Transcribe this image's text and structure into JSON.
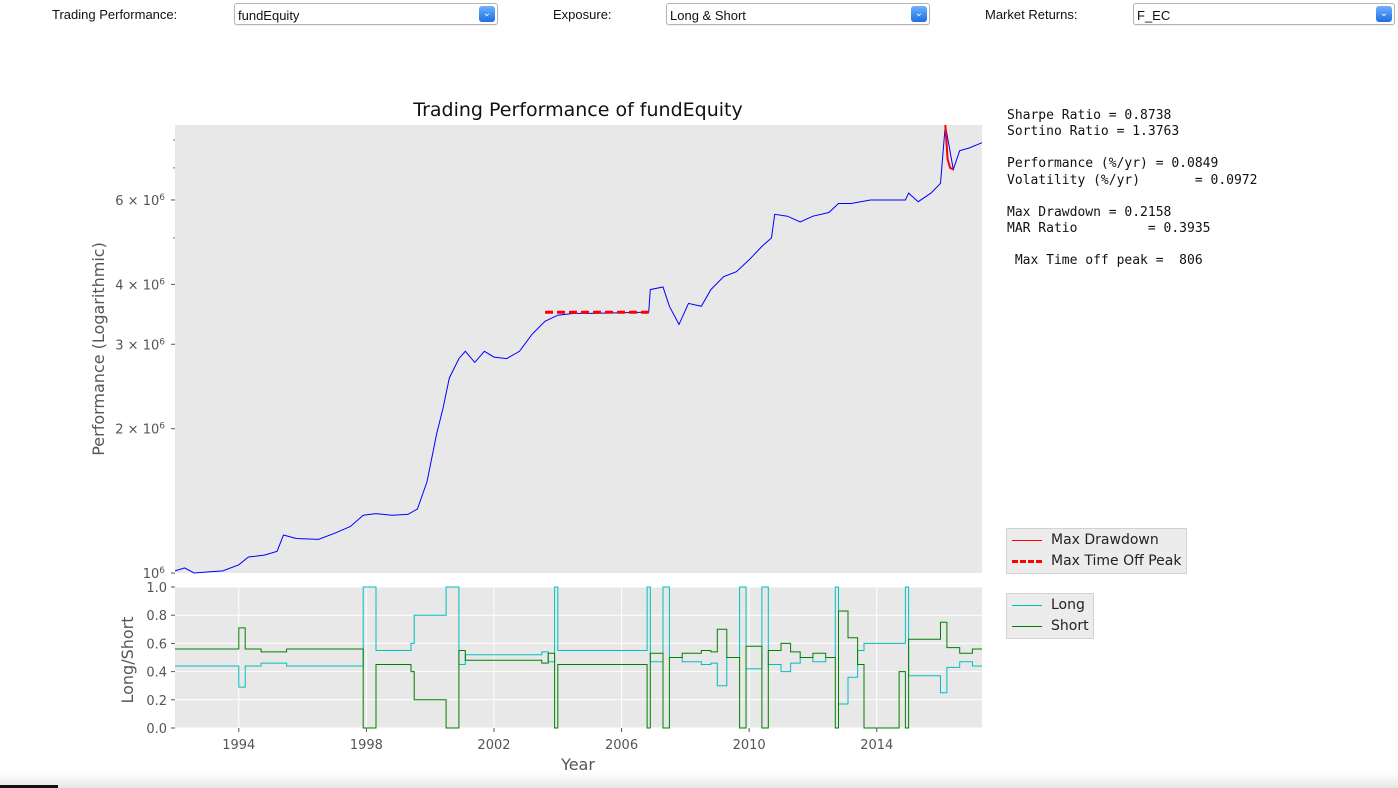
{
  "controls": [
    {
      "label": "Trading Performance:",
      "value": "fundEquity",
      "icon": "chevron-down-icon"
    },
    {
      "label": "Exposure:",
      "value": "Long & Short",
      "icon": "chevron-down-icon"
    },
    {
      "label": "Market Returns:",
      "value": "F_EC",
      "icon": "chevron-down-icon"
    }
  ],
  "stats": {
    "sharpe": "Sharpe Ratio = 0.8738",
    "sortino": "Sortino Ratio = 1.3763",
    "performance": "Performance (%/yr) = 0.0849",
    "volatility": "Volatility (%/yr)       = 0.0972",
    "max_drawdown": "Max Drawdown = 0.2158",
    "mar": "MAR Ratio         = 0.3935",
    "time_off_peak": " Max Time off peak =  806"
  },
  "legends": {
    "top": [
      {
        "label": "Max Drawdown",
        "color": "#ff0000",
        "style": "solid"
      },
      {
        "label": "Max Time Off Peak",
        "color": "#ff0000",
        "style": "dashed"
      }
    ],
    "bottom": [
      {
        "label": "Long",
        "color": "#00bfbf",
        "style": "solid"
      },
      {
        "label": "Short",
        "color": "#008000",
        "style": "solid"
      }
    ]
  },
  "chart_data": [
    {
      "type": "line",
      "title": "Trading Performance of fundEquity",
      "ylabel": "Performance (Logarithmic)",
      "xlabel": "",
      "y_scale": "log",
      "xlim": [
        1992.0,
        2017.3
      ],
      "ylim": [
        1000000,
        8600000
      ],
      "y_ticks": [
        {
          "v": 1000000,
          "label_base": "10",
          "label_exp": "6"
        },
        {
          "v": 2000000,
          "label_base": "2 × 10",
          "label_exp": "6"
        },
        {
          "v": 3000000,
          "label_base": "3 × 10",
          "label_exp": "6"
        },
        {
          "v": 4000000,
          "label_base": "4 × 10",
          "label_exp": "6"
        },
        {
          "v": 6000000,
          "label_base": "6 × 10",
          "label_exp": "6"
        }
      ],
      "grid": true,
      "series": [
        {
          "color": "#0000ff",
          "points": [
            [
              1992.0,
              1010000
            ],
            [
              1992.3,
              1025000
            ],
            [
              1992.6,
              1000000
            ],
            [
              1993.0,
              1005000
            ],
            [
              1993.5,
              1010000
            ],
            [
              1994.0,
              1040000
            ],
            [
              1994.3,
              1080000
            ],
            [
              1994.8,
              1090000
            ],
            [
              1995.2,
              1110000
            ],
            [
              1995.4,
              1200000
            ],
            [
              1995.8,
              1180000
            ],
            [
              1996.5,
              1175000
            ],
            [
              1997.0,
              1210000
            ],
            [
              1997.5,
              1250000
            ],
            [
              1997.9,
              1320000
            ],
            [
              1998.3,
              1330000
            ],
            [
              1998.8,
              1320000
            ],
            [
              1999.3,
              1325000
            ],
            [
              1999.6,
              1360000
            ],
            [
              1999.9,
              1550000
            ],
            [
              2000.2,
              1950000
            ],
            [
              2000.4,
              2200000
            ],
            [
              2000.6,
              2550000
            ],
            [
              2000.9,
              2800000
            ],
            [
              2001.1,
              2900000
            ],
            [
              2001.4,
              2750000
            ],
            [
              2001.7,
              2900000
            ],
            [
              2002.0,
              2820000
            ],
            [
              2002.4,
              2800000
            ],
            [
              2002.8,
              2900000
            ],
            [
              2003.2,
              3150000
            ],
            [
              2003.6,
              3350000
            ],
            [
              2004.0,
              3450000
            ],
            [
              2004.5,
              3480000
            ],
            [
              2005.0,
              3480000
            ],
            [
              2006.0,
              3490000
            ],
            [
              2006.7,
              3500000
            ],
            [
              2006.85,
              3500000
            ],
            [
              2006.9,
              3900000
            ],
            [
              2007.3,
              3950000
            ],
            [
              2007.5,
              3600000
            ],
            [
              2007.8,
              3300000
            ],
            [
              2008.1,
              3650000
            ],
            [
              2008.5,
              3600000
            ],
            [
              2008.8,
              3900000
            ],
            [
              2009.2,
              4150000
            ],
            [
              2009.6,
              4250000
            ],
            [
              2010.0,
              4500000
            ],
            [
              2010.4,
              4800000
            ],
            [
              2010.7,
              5000000
            ],
            [
              2010.8,
              5600000
            ],
            [
              2011.2,
              5550000
            ],
            [
              2011.6,
              5400000
            ],
            [
              2012.0,
              5550000
            ],
            [
              2012.5,
              5650000
            ],
            [
              2012.8,
              5900000
            ],
            [
              2013.2,
              5900000
            ],
            [
              2013.5,
              5950000
            ],
            [
              2013.8,
              6000000
            ],
            [
              2014.9,
              6000000
            ],
            [
              2015.0,
              6200000
            ],
            [
              2015.3,
              5950000
            ],
            [
              2015.7,
              6200000
            ],
            [
              2016.0,
              6500000
            ],
            [
              2016.15,
              8600000
            ],
            [
              2016.4,
              6950000
            ],
            [
              2016.6,
              7600000
            ],
            [
              2016.9,
              7700000
            ],
            [
              2017.3,
              7900000
            ]
          ]
        },
        {
          "name": "Max Drawdown",
          "color": "#ff0000",
          "points": [
            [
              2016.15,
              8600000
            ],
            [
              2016.22,
              7300000
            ],
            [
              2016.3,
              7000000
            ],
            [
              2016.4,
              6950000
            ]
          ]
        },
        {
          "name": "Max Time Off Peak",
          "color": "#ff0000",
          "dashed": true,
          "points": [
            [
              2003.6,
              3500000
            ],
            [
              2006.85,
              3500000
            ]
          ]
        }
      ]
    },
    {
      "type": "line",
      "title": "",
      "xlabel": "Year",
      "ylabel": "Long/Short",
      "xlim": [
        1992.0,
        2017.3
      ],
      "ylim": [
        0.0,
        1.0
      ],
      "x_ticks": [
        1994,
        1998,
        2002,
        2006,
        2010,
        2014
      ],
      "y_ticks": [
        0.0,
        0.2,
        0.4,
        0.6,
        0.8,
        1.0
      ],
      "grid": true,
      "series": [
        {
          "name": "Long",
          "color": "#00bfbf",
          "steps": [
            [
              1992.0,
              0.44
            ],
            [
              1994.0,
              0.29
            ],
            [
              1994.2,
              0.44
            ],
            [
              1994.7,
              0.46
            ],
            [
              1995.5,
              0.44
            ],
            [
              1997.9,
              1.0
            ],
            [
              1998.3,
              0.55
            ],
            [
              1999.4,
              0.6
            ],
            [
              1999.5,
              0.8
            ],
            [
              2000.5,
              1.0
            ],
            [
              2000.9,
              0.45
            ],
            [
              2001.1,
              0.52
            ],
            [
              2003.5,
              0.54
            ],
            [
              2003.7,
              0.47
            ],
            [
              2003.9,
              1.0
            ],
            [
              2004.0,
              0.55
            ],
            [
              2006.8,
              1.0
            ],
            [
              2006.9,
              0.47
            ],
            [
              2007.3,
              1.0
            ],
            [
              2007.5,
              0.5
            ],
            [
              2007.9,
              0.47
            ],
            [
              2008.5,
              0.45
            ],
            [
              2008.8,
              0.46
            ],
            [
              2009.0,
              0.3
            ],
            [
              2009.3,
              0.5
            ],
            [
              2009.7,
              1.0
            ],
            [
              2009.9,
              0.42
            ],
            [
              2010.4,
              1.0
            ],
            [
              2010.6,
              0.45
            ],
            [
              2011.0,
              0.4
            ],
            [
              2011.3,
              0.46
            ],
            [
              2011.6,
              0.5
            ],
            [
              2012.0,
              0.47
            ],
            [
              2012.4,
              0.5
            ],
            [
              2012.7,
              1.0
            ],
            [
              2012.8,
              0.17
            ],
            [
              2013.1,
              0.36
            ],
            [
              2013.4,
              0.55
            ],
            [
              2013.6,
              0.6
            ],
            [
              2014.7,
              0.6
            ],
            [
              2014.9,
              1.0
            ],
            [
              2015.0,
              0.37
            ],
            [
              2016.0,
              0.25
            ],
            [
              2016.2,
              0.43
            ],
            [
              2016.6,
              0.47
            ],
            [
              2017.0,
              0.44
            ],
            [
              2017.3,
              0.44
            ]
          ]
        },
        {
          "name": "Short",
          "color": "#008000",
          "steps": [
            [
              1992.0,
              0.56
            ],
            [
              1994.0,
              0.71
            ],
            [
              1994.2,
              0.56
            ],
            [
              1994.7,
              0.54
            ],
            [
              1995.5,
              0.56
            ],
            [
              1997.9,
              0.0
            ],
            [
              1998.3,
              0.45
            ],
            [
              1999.4,
              0.4
            ],
            [
              1999.5,
              0.2
            ],
            [
              2000.5,
              0.0
            ],
            [
              2000.9,
              0.55
            ],
            [
              2001.1,
              0.48
            ],
            [
              2003.5,
              0.46
            ],
            [
              2003.7,
              0.53
            ],
            [
              2003.9,
              0.0
            ],
            [
              2004.0,
              0.45
            ],
            [
              2006.8,
              0.0
            ],
            [
              2006.9,
              0.53
            ],
            [
              2007.3,
              0.0
            ],
            [
              2007.5,
              0.5
            ],
            [
              2007.9,
              0.53
            ],
            [
              2008.5,
              0.55
            ],
            [
              2008.8,
              0.54
            ],
            [
              2009.0,
              0.7
            ],
            [
              2009.3,
              0.5
            ],
            [
              2009.7,
              0.0
            ],
            [
              2009.9,
              0.58
            ],
            [
              2010.4,
              0.0
            ],
            [
              2010.6,
              0.55
            ],
            [
              2011.0,
              0.6
            ],
            [
              2011.3,
              0.54
            ],
            [
              2011.6,
              0.5
            ],
            [
              2012.0,
              0.53
            ],
            [
              2012.4,
              0.5
            ],
            [
              2012.7,
              0.0
            ],
            [
              2012.8,
              0.83
            ],
            [
              2013.1,
              0.64
            ],
            [
              2013.4,
              0.45
            ],
            [
              2013.6,
              0.0
            ],
            [
              2014.7,
              0.4
            ],
            [
              2014.9,
              0.0
            ],
            [
              2015.0,
              0.63
            ],
            [
              2016.0,
              0.75
            ],
            [
              2016.2,
              0.57
            ],
            [
              2016.6,
              0.53
            ],
            [
              2017.0,
              0.56
            ],
            [
              2017.3,
              0.56
            ]
          ]
        }
      ]
    }
  ]
}
